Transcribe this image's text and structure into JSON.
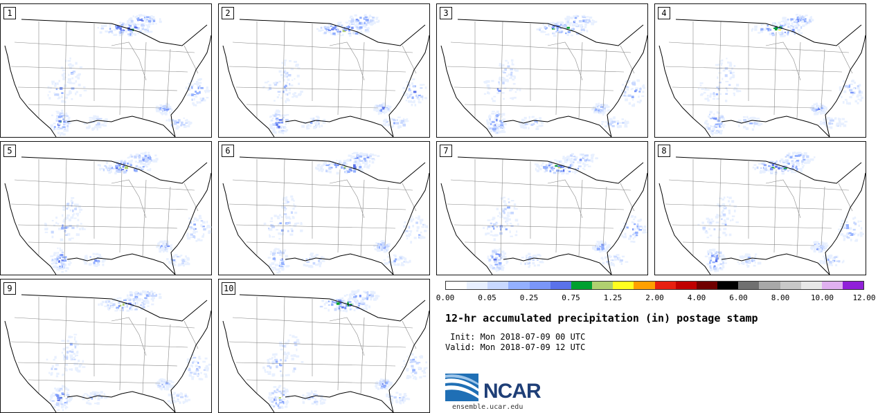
{
  "stamps": [
    {
      "label": "1"
    },
    {
      "label": "2"
    },
    {
      "label": "3"
    },
    {
      "label": "4"
    },
    {
      "label": "5"
    },
    {
      "label": "6"
    },
    {
      "label": "7"
    },
    {
      "label": "8"
    },
    {
      "label": "9"
    },
    {
      "label": "10"
    }
  ],
  "colorbar": {
    "colors": [
      "#ffffff",
      "#e8f0ff",
      "#c8d8ff",
      "#93b0ff",
      "#7a96f8",
      "#5a72ea",
      "#00a030",
      "#b0d070",
      "#ffff20",
      "#ffa000",
      "#e82010",
      "#c00000",
      "#700000",
      "#000000",
      "#707070",
      "#a8a8a8",
      "#c8c8c8",
      "#e8e8e8",
      "#e0b0f0",
      "#9020d8"
    ],
    "tick_labels": [
      "0.00",
      "0.05",
      "0.25",
      "0.75",
      "1.25",
      "2.00",
      "4.00",
      "6.00",
      "8.00",
      "10.00",
      "12.00"
    ]
  },
  "title": "12-hr accumulated precipitation (in) postage stamp",
  "init": " Init: Mon 2018-07-09 00 UTC",
  "valid": "Valid: Mon 2018-07-09 12 UTC",
  "logo": {
    "text": "NCAR",
    "site": "ensemble.ucar.edu"
  }
}
